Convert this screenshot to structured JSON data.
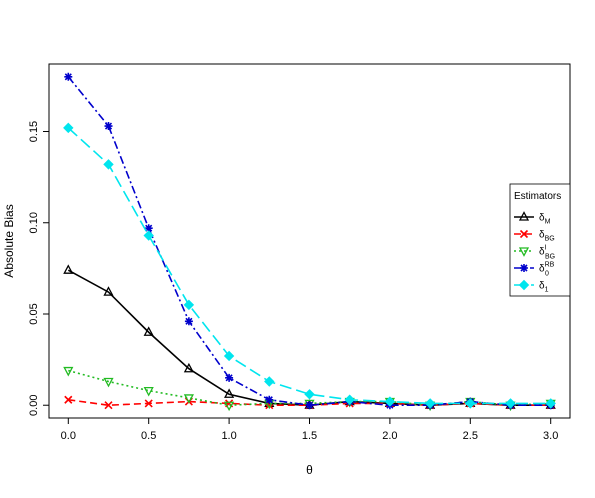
{
  "chart_data": {
    "type": "line",
    "title": "",
    "xlabel": "θ",
    "ylabel": "Absolute Bias",
    "xlim": [
      -0.12,
      3.12
    ],
    "ylim": [
      -0.007,
      0.187
    ],
    "x_ticks": [
      "0.0",
      "0.5",
      "1.0",
      "1.5",
      "2.0",
      "2.5",
      "3.0"
    ],
    "y_ticks": [
      "0.00",
      "0.05",
      "0.10",
      "0.15"
    ],
    "grid": false,
    "legend": {
      "title": "Estimators",
      "position": "right",
      "entries": [
        {
          "base": "δ",
          "sub": "M",
          "sup": ""
        },
        {
          "base": "δ",
          "sub": "BG",
          "sup": ""
        },
        {
          "base": "δ",
          "sub": "BG",
          "sup": "I"
        },
        {
          "base": "δ",
          "sub": "0",
          "sup": "RB"
        },
        {
          "base": "δ",
          "sub": "1",
          "sup": ""
        }
      ]
    },
    "x": [
      0.0,
      0.25,
      0.5,
      0.75,
      1.0,
      1.25,
      1.5,
      1.75,
      2.0,
      2.25,
      2.5,
      2.75,
      3.0
    ],
    "series": [
      {
        "color": "#000000",
        "dash": "",
        "marker": "triangle-up",
        "values": [
          0.074,
          0.062,
          0.04,
          0.02,
          0.006,
          0.001,
          0.0,
          0.002,
          0.001,
          0.0,
          0.001,
          0.0,
          0.0
        ]
      },
      {
        "color": "#ff0000",
        "dash": "7,4",
        "marker": "cross",
        "values": [
          0.003,
          0.0,
          0.001,
          0.002,
          0.001,
          0.0,
          0.0,
          0.001,
          0.001,
          0.0,
          0.001,
          0.0,
          0.0
        ]
      },
      {
        "color": "#22bb22",
        "dash": "2,3",
        "marker": "triangle-down",
        "values": [
          0.019,
          0.013,
          0.008,
          0.004,
          0.0,
          0.001,
          0.001,
          0.002,
          0.002,
          0.0,
          0.002,
          0.0,
          0.001
        ]
      },
      {
        "color": "#0000cc",
        "dash": "8,3,2,3",
        "marker": "asterisk",
        "values": [
          0.18,
          0.153,
          0.097,
          0.046,
          0.015,
          0.003,
          0.0,
          0.002,
          0.0,
          0.0,
          0.002,
          0.0,
          0.0
        ]
      },
      {
        "color": "#00e5ee",
        "dash": "12,5",
        "marker": "diamond",
        "values": [
          0.152,
          0.132,
          0.093,
          0.055,
          0.027,
          0.013,
          0.006,
          0.003,
          0.002,
          0.001,
          0.001,
          0.001,
          0.001
        ]
      }
    ]
  }
}
